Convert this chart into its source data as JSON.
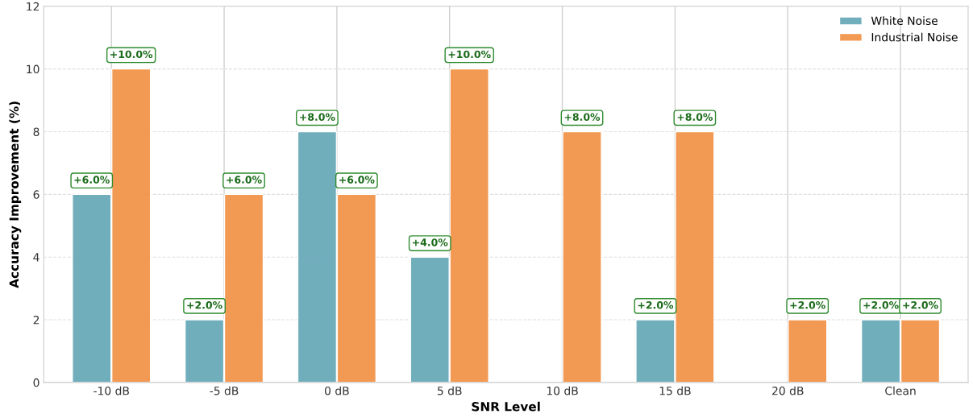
{
  "chart_data": {
    "type": "bar",
    "xlabel": "SNR Level",
    "ylabel": "Accuracy Improvement (%)",
    "categories": [
      "-10 dB",
      "-5 dB",
      "0 dB",
      "5 dB",
      "10 dB",
      "15 dB",
      "20 dB",
      "Clean"
    ],
    "series": [
      {
        "name": "White Noise",
        "color": "#6aaab9",
        "values": [
          6,
          2,
          8,
          4,
          null,
          2,
          null,
          2
        ],
        "value_labels": [
          "+6.0%",
          "+2.0%",
          "+8.0%",
          "+4.0%",
          null,
          "+2.0%",
          null,
          "+2.0%"
        ]
      },
      {
        "name": "Industrial Noise",
        "color": "#f2944a",
        "values": [
          10,
          6,
          6,
          10,
          8,
          8,
          2,
          2
        ],
        "value_labels": [
          "+10.0%",
          "+6.0%",
          "+6.0%",
          "+10.0%",
          "+8.0%",
          "+8.0%",
          "+2.0%",
          "+2.0%"
        ]
      }
    ],
    "ylim": [
      0,
      12
    ],
    "yticks": [
      0,
      2,
      4,
      6,
      8,
      10,
      12
    ],
    "grid": true,
    "legend": "top right"
  }
}
